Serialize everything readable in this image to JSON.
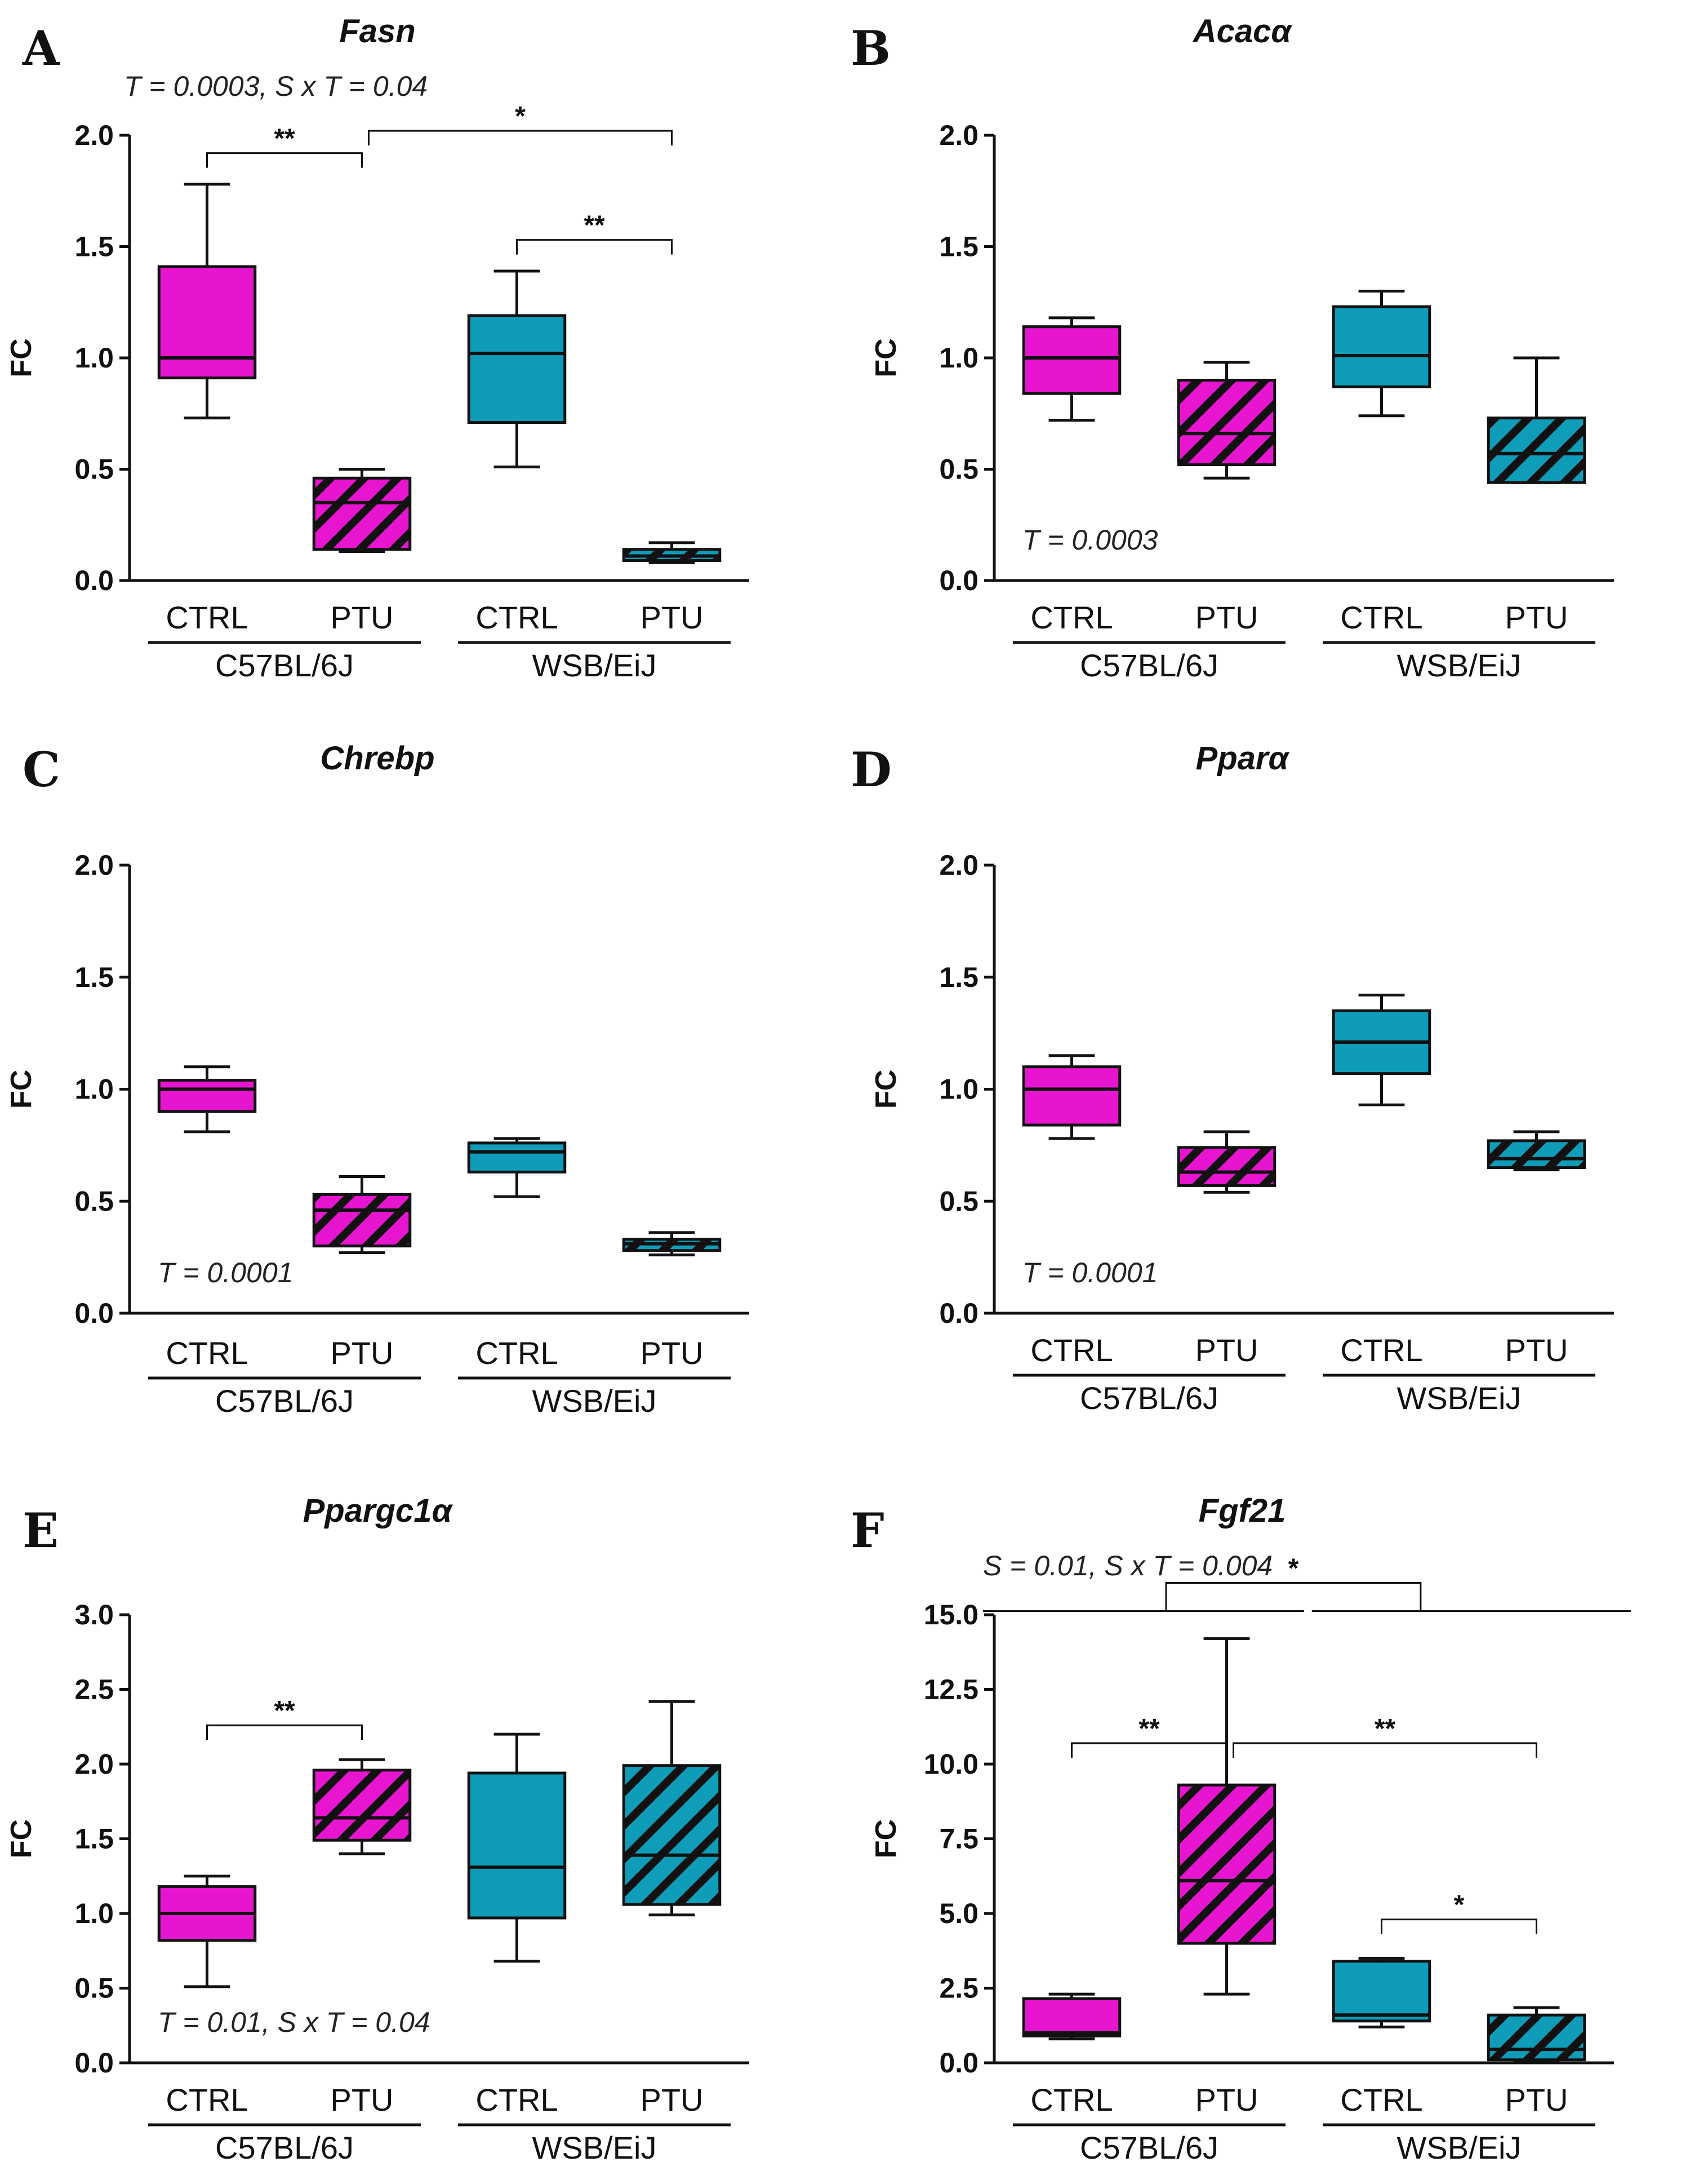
{
  "colors": {
    "c57": "#e815d0",
    "wsb": "#0f9cb8",
    "stroke": "#111111",
    "hatch": "#111111"
  },
  "chart_data": [
    {
      "type": "box",
      "letter": "A",
      "title": "Fasn",
      "ylabel": "FC",
      "ylim": [
        0,
        2.0
      ],
      "yticks": [
        "0.0",
        "0.5",
        "1.0",
        "1.5",
        "2.0"
      ],
      "categories": [
        "CTRL",
        "PTU",
        "CTRL",
        "PTU"
      ],
      "groups": [
        "C57BL/6J",
        "WSB/EiJ"
      ],
      "stat": "T = 0.0003, S x T = 0.04",
      "stat_pos": "top-left",
      "boxes": [
        {
          "min": 0.73,
          "q1": 0.91,
          "median": 1.0,
          "q3": 1.41,
          "max": 1.78,
          "strain": "c57",
          "hatched": false
        },
        {
          "min": 0.13,
          "q1": 0.14,
          "median": 0.35,
          "q3": 0.46,
          "max": 0.5,
          "strain": "c57",
          "hatched": true
        },
        {
          "min": 0.51,
          "q1": 0.71,
          "median": 1.02,
          "q3": 1.19,
          "max": 1.39,
          "strain": "wsb",
          "hatched": false
        },
        {
          "min": 0.08,
          "q1": 0.09,
          "median": 0.11,
          "q3": 0.14,
          "max": 0.17,
          "strain": "wsb",
          "hatched": true
        }
      ],
      "significance": [
        {
          "from": 0,
          "to": 1,
          "y": 1.92,
          "label": "**"
        },
        {
          "from": 1,
          "to": 3,
          "y": 2.02,
          "label": "*"
        },
        {
          "from": 2,
          "to": 3,
          "y": 1.53,
          "label": "**"
        }
      ]
    },
    {
      "type": "box",
      "letter": "B",
      "title": "Acacα",
      "ylabel": "FC",
      "ylim": [
        0,
        2.0
      ],
      "yticks": [
        "0.0",
        "0.5",
        "1.0",
        "1.5",
        "2.0"
      ],
      "categories": [
        "CTRL",
        "PTU",
        "CTRL",
        "PTU"
      ],
      "groups": [
        "C57BL/6J",
        "WSB/EiJ"
      ],
      "stat": "T = 0.0003",
      "stat_pos": "bottom-left",
      "boxes": [
        {
          "min": 0.72,
          "q1": 0.84,
          "median": 1.0,
          "q3": 1.14,
          "max": 1.18,
          "strain": "c57",
          "hatched": false
        },
        {
          "min": 0.46,
          "q1": 0.52,
          "median": 0.66,
          "q3": 0.9,
          "max": 0.98,
          "strain": "c57",
          "hatched": true
        },
        {
          "min": 0.74,
          "q1": 0.87,
          "median": 1.01,
          "q3": 1.23,
          "max": 1.3,
          "strain": "wsb",
          "hatched": false
        },
        {
          "min": 0.44,
          "q1": 0.44,
          "median": 0.57,
          "q3": 0.73,
          "max": 1.0,
          "strain": "wsb",
          "hatched": true
        }
      ],
      "significance": []
    },
    {
      "type": "box",
      "letter": "C",
      "title": "Chrebp",
      "ylabel": "FC",
      "ylim": [
        0,
        2.0
      ],
      "yticks": [
        "0.0",
        "0.5",
        "1.0",
        "1.5",
        "2.0"
      ],
      "categories": [
        "CTRL",
        "PTU",
        "CTRL",
        "PTU"
      ],
      "groups": [
        "C57BL/6J",
        "WSB/EiJ"
      ],
      "stat": "T = 0.0001",
      "stat_pos": "bottom-left",
      "boxes": [
        {
          "min": 0.81,
          "q1": 0.9,
          "median": 1.0,
          "q3": 1.04,
          "max": 1.1,
          "strain": "c57",
          "hatched": false
        },
        {
          "min": 0.27,
          "q1": 0.3,
          "median": 0.46,
          "q3": 0.53,
          "max": 0.61,
          "strain": "c57",
          "hatched": true
        },
        {
          "min": 0.52,
          "q1": 0.63,
          "median": 0.72,
          "q3": 0.76,
          "max": 0.78,
          "strain": "wsb",
          "hatched": false
        },
        {
          "min": 0.26,
          "q1": 0.28,
          "median": 0.31,
          "q3": 0.33,
          "max": 0.36,
          "strain": "wsb",
          "hatched": true
        }
      ],
      "significance": []
    },
    {
      "type": "box",
      "letter": "D",
      "title": "Pparα",
      "ylabel": "FC",
      "ylim": [
        0,
        2.0
      ],
      "yticks": [
        "0.0",
        "0.5",
        "1.0",
        "1.5",
        "2.0"
      ],
      "categories": [
        "CTRL",
        "PTU",
        "CTRL",
        "PTU"
      ],
      "groups": [
        "C57BL/6J",
        "WSB/EiJ"
      ],
      "stat": "T = 0.0001",
      "stat_pos": "bottom-left",
      "boxes": [
        {
          "min": 0.78,
          "q1": 0.84,
          "median": 1.0,
          "q3": 1.1,
          "max": 1.15,
          "strain": "c57",
          "hatched": false
        },
        {
          "min": 0.54,
          "q1": 0.57,
          "median": 0.63,
          "q3": 0.74,
          "max": 0.81,
          "strain": "c57",
          "hatched": true
        },
        {
          "min": 0.93,
          "q1": 1.07,
          "median": 1.21,
          "q3": 1.35,
          "max": 1.42,
          "strain": "wsb",
          "hatched": false
        },
        {
          "min": 0.64,
          "q1": 0.65,
          "median": 0.69,
          "q3": 0.77,
          "max": 0.81,
          "strain": "wsb",
          "hatched": true
        }
      ],
      "significance": []
    },
    {
      "type": "box",
      "letter": "E",
      "title": "Ppargc1α",
      "ylabel": "FC",
      "ylim": [
        0,
        3.0
      ],
      "yticks": [
        "0.0",
        "0.5",
        "1.0",
        "1.5",
        "2.0",
        "2.5",
        "3.0"
      ],
      "categories": [
        "CTRL",
        "PTU",
        "CTRL",
        "PTU"
      ],
      "groups": [
        "C57BL/6J",
        "WSB/EiJ"
      ],
      "stat": "T = 0.01, S x T = 0.04",
      "stat_pos": "bottom-left",
      "boxes": [
        {
          "min": 0.51,
          "q1": 0.82,
          "median": 1.0,
          "q3": 1.18,
          "max": 1.25,
          "strain": "c57",
          "hatched": false
        },
        {
          "min": 1.4,
          "q1": 1.49,
          "median": 1.64,
          "q3": 1.96,
          "max": 2.03,
          "strain": "c57",
          "hatched": true
        },
        {
          "min": 0.68,
          "q1": 0.97,
          "median": 1.31,
          "q3": 1.94,
          "max": 2.2,
          "strain": "wsb",
          "hatched": false
        },
        {
          "min": 0.99,
          "q1": 1.06,
          "median": 1.39,
          "q3": 1.99,
          "max": 2.42,
          "strain": "wsb",
          "hatched": true
        }
      ],
      "significance": [
        {
          "from": 0,
          "to": 1,
          "y": 2.26,
          "label": "**"
        }
      ]
    },
    {
      "type": "box",
      "letter": "F",
      "title": "Fgf21",
      "ylabel": "FC",
      "ylim": [
        0,
        15.0
      ],
      "yticks": [
        "0.0",
        "2.5",
        "5.0",
        "7.5",
        "10.0",
        "12.5",
        "15.0"
      ],
      "categories": [
        "CTRL",
        "PTU",
        "CTRL",
        "PTU"
      ],
      "groups": [
        "C57BL/6J",
        "WSB/EiJ"
      ],
      "stat": "S = 0.01, S x T = 0.004",
      "stat_pos": "top-left",
      "boxes": [
        {
          "min": 0.8,
          "q1": 0.9,
          "median": 1.0,
          "q3": 2.15,
          "max": 2.3,
          "strain": "c57",
          "hatched": false
        },
        {
          "min": 2.3,
          "q1": 4.0,
          "median": 6.1,
          "q3": 9.3,
          "max": 14.2,
          "strain": "c57",
          "hatched": true
        },
        {
          "min": 1.2,
          "q1": 1.4,
          "median": 1.6,
          "q3": 3.4,
          "max": 3.5,
          "strain": "wsb",
          "hatched": false
        },
        {
          "min": 0.05,
          "q1": 0.1,
          "median": 0.45,
          "q3": 1.6,
          "max": 1.85,
          "strain": "wsb",
          "hatched": true
        }
      ],
      "significance": [
        {
          "from": 0,
          "to": 1,
          "y": 10.7,
          "label": "**"
        },
        {
          "from": 1,
          "to": 3,
          "y": 10.7,
          "label": "**"
        },
        {
          "from": 2,
          "to": 3,
          "y": 4.8,
          "label": "*"
        }
      ],
      "group_comparison": {
        "label": "*",
        "y": 15.5
      }
    }
  ]
}
